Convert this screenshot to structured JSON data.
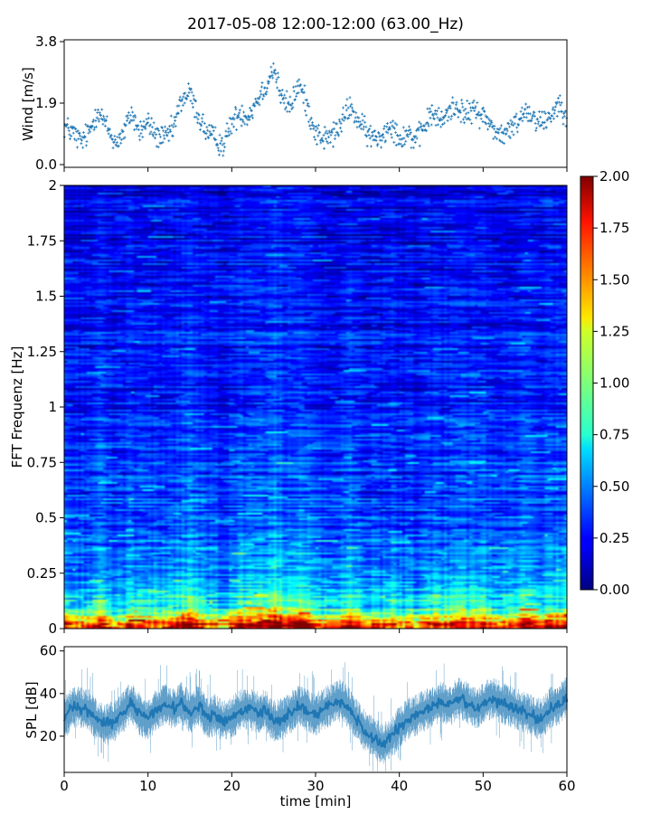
{
  "title": "2017-05-08 12:00-12:00 (63.00_Hz)",
  "colors": {
    "series": "#1f77b4",
    "colormap": "jet"
  },
  "chart_data": [
    {
      "type": "scatter",
      "xlabel": "",
      "ylabel": "Wind [m/s]",
      "xlim": [
        0,
        60
      ],
      "ylim": [
        0,
        3.8
      ],
      "yticks": [
        "0.0",
        "1.9",
        "3.8"
      ],
      "marker": "+",
      "x": [
        0,
        1,
        2,
        3,
        4,
        5,
        6,
        7,
        8,
        9,
        10,
        11,
        12,
        13,
        14,
        15,
        16,
        17,
        18,
        19,
        20,
        21,
        22,
        23,
        24,
        25,
        26,
        27,
        28,
        29,
        30,
        31,
        32,
        33,
        34,
        35,
        36,
        37,
        38,
        39,
        40,
        41,
        42,
        43,
        44,
        45,
        46,
        47,
        48,
        49,
        50,
        51,
        52,
        53,
        54,
        55,
        56,
        57,
        58,
        59,
        60
      ],
      "y": [
        1.2,
        1.0,
        0.7,
        1.0,
        1.7,
        1.2,
        0.7,
        0.9,
        1.6,
        1.0,
        1.3,
        0.9,
        0.8,
        1.1,
        2.0,
        2.2,
        1.5,
        1.0,
        0.8,
        0.6,
        1.3,
        1.6,
        1.5,
        2.0,
        2.4,
        3.0,
        2.0,
        1.8,
        2.5,
        1.8,
        1.0,
        0.8,
        0.9,
        1.2,
        1.8,
        1.4,
        1.0,
        0.8,
        0.9,
        1.3,
        0.8,
        1.0,
        0.7,
        1.2,
        1.6,
        1.3,
        1.7,
        1.8,
        1.5,
        1.7,
        1.5,
        1.2,
        0.9,
        1.0,
        1.3,
        1.7,
        1.5,
        1.3,
        1.5,
        1.9,
        1.6
      ]
    },
    {
      "type": "heatmap",
      "xlabel": "",
      "ylabel": "FFT Frequenz [Hz]",
      "xlim": [
        0,
        60
      ],
      "ylim": [
        0,
        2
      ],
      "yticks": [
        "0",
        "0.25",
        "0.5",
        "0.75",
        "1",
        "1.25",
        "1.5",
        "1.75",
        "2"
      ],
      "colorbar": {
        "range": [
          0,
          2
        ],
        "ticks": [
          "0.00",
          "0.25",
          "0.50",
          "0.75",
          "1.00",
          "1.25",
          "1.50",
          "1.75",
          "2.00"
        ]
      },
      "mean_profile": {
        "frequency": [
          0,
          0.02,
          0.05,
          0.1,
          0.2,
          0.3,
          0.4,
          0.5,
          0.75,
          1.0,
          1.5,
          2.0
        ],
        "value": [
          1.7,
          1.5,
          1.15,
          0.8,
          0.55,
          0.48,
          0.42,
          0.38,
          0.34,
          0.3,
          0.25,
          0.2
        ]
      }
    },
    {
      "type": "line",
      "xlabel": "time [min]",
      "ylabel": "SPL [dB]",
      "xlim": [
        0,
        60
      ],
      "ylim": [
        3,
        62
      ],
      "yticks": [
        "20",
        "40",
        "60"
      ],
      "xticks": [
        "0",
        "10",
        "20",
        "30",
        "40",
        "50",
        "60"
      ],
      "x": [
        0,
        1,
        2,
        3,
        4,
        5,
        6,
        7,
        8,
        9,
        10,
        11,
        12,
        13,
        14,
        15,
        16,
        17,
        18,
        19,
        20,
        21,
        22,
        23,
        24,
        25,
        26,
        27,
        28,
        29,
        30,
        31,
        32,
        33,
        34,
        35,
        36,
        37,
        38,
        39,
        40,
        41,
        42,
        43,
        44,
        45,
        46,
        47,
        48,
        49,
        50,
        51,
        52,
        53,
        54,
        55,
        56,
        57,
        58,
        59,
        60
      ],
      "y": [
        28,
        34,
        33,
        32,
        27,
        25,
        27,
        31,
        36,
        30,
        28,
        32,
        35,
        33,
        36,
        31,
        35,
        29,
        30,
        27,
        29,
        32,
        33,
        31,
        32,
        27,
        28,
        31,
        34,
        32,
        30,
        33,
        35,
        37,
        33,
        27,
        22,
        19,
        16,
        19,
        24,
        28,
        30,
        32,
        34,
        36,
        34,
        38,
        36,
        33,
        35,
        38,
        36,
        34,
        33,
        31,
        29,
        28,
        33,
        35,
        38
      ]
    }
  ]
}
